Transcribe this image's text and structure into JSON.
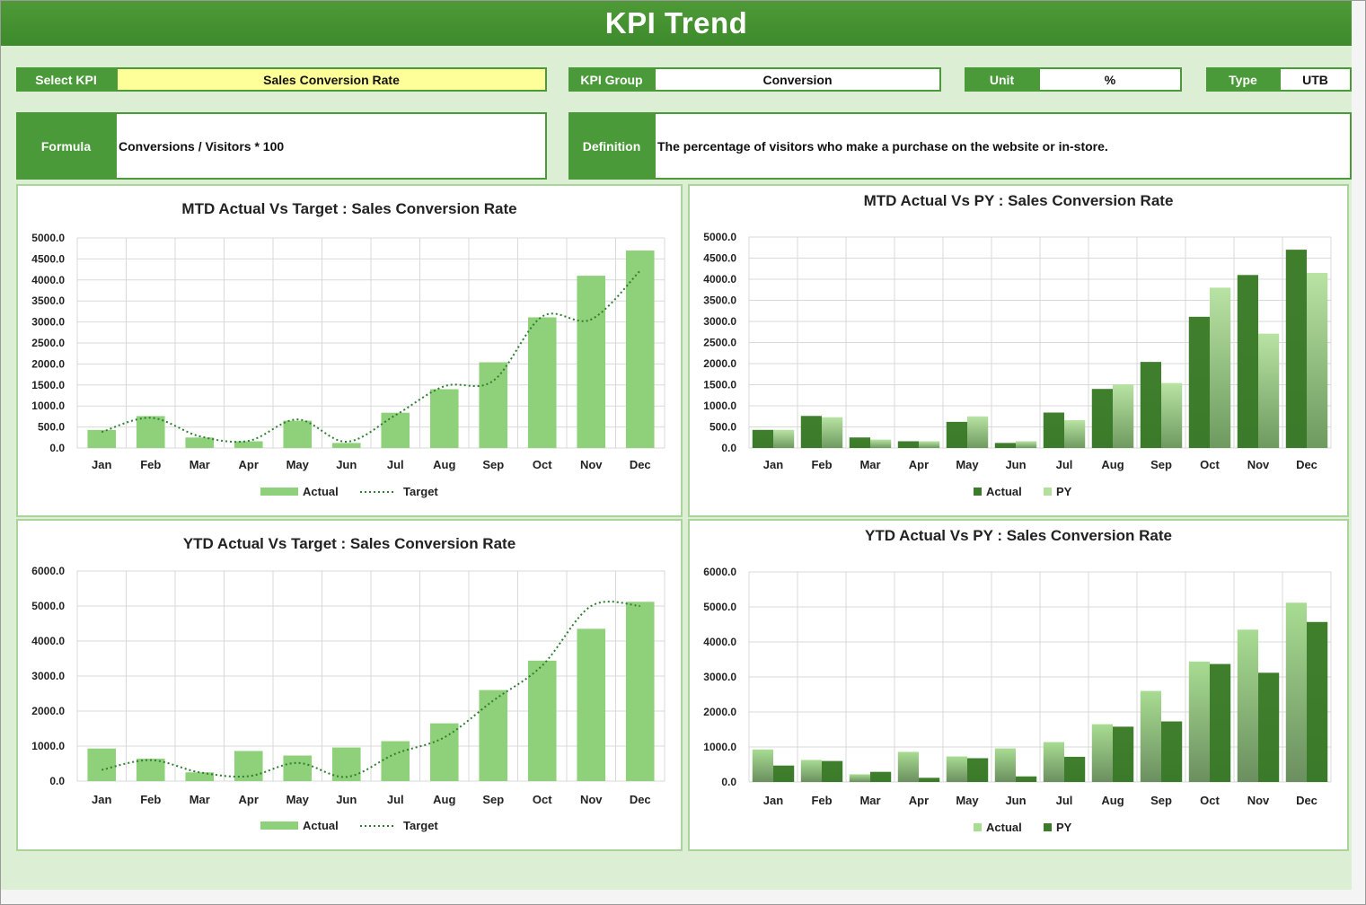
{
  "header": {
    "title": "KPI Trend"
  },
  "selectors": {
    "select_kpi_label": "Select KPI",
    "select_kpi_value": "Sales Conversion Rate",
    "kpi_group_label": "KPI Group",
    "kpi_group_value": "Conversion",
    "unit_label": "Unit",
    "unit_value": "%",
    "type_label": "Type",
    "type_value": "UTB"
  },
  "info": {
    "formula_label": "Formula",
    "formula_value": "Conversions / Visitors * 100",
    "definition_label": "Definition",
    "definition_value": "The percentage of visitors who make a purchase on the website or in-store."
  },
  "colors": {
    "header_green": "#3d8a2c",
    "label_green": "#4a9a3a",
    "background": "#dcefd4",
    "select_highlight": "#ffff99",
    "actual_light_green": "#8fd17a",
    "dark_green": "#3c7a2c",
    "py_light_green": "#b2e09c"
  },
  "chart_data": [
    {
      "id": "mtd_target",
      "type": "bar",
      "title": "MTD Actual Vs Target : Sales Conversion Rate",
      "categories": [
        "Jan",
        "Feb",
        "Mar",
        "Apr",
        "May",
        "Jun",
        "Jul",
        "Aug",
        "Sep",
        "Oct",
        "Nov",
        "Dec"
      ],
      "series": [
        {
          "name": "Actual",
          "kind": "bar",
          "values": [
            430,
            760,
            250,
            160,
            650,
            120,
            840,
            1400,
            2040,
            3110,
            4100,
            4700
          ]
        },
        {
          "name": "Target",
          "kind": "line-dotted",
          "values": [
            380,
            720,
            280,
            170,
            680,
            150,
            780,
            1470,
            1600,
            3130,
            3060,
            4220
          ]
        }
      ],
      "ylim": [
        0,
        5000
      ],
      "yticks": [
        "0.0",
        "500.0",
        "1000.0",
        "1500.0",
        "2000.0",
        "2500.0",
        "3000.0",
        "3500.0",
        "4000.0",
        "4500.0",
        "5000.0"
      ],
      "legend": "bottom"
    },
    {
      "id": "mtd_py",
      "type": "bar",
      "title": "MTD Actual Vs PY : Sales Conversion Rate",
      "categories": [
        "Jan",
        "Feb",
        "Mar",
        "Apr",
        "May",
        "Jun",
        "Jul",
        "Aug",
        "Sep",
        "Oct",
        "Nov",
        "Dec"
      ],
      "series": [
        {
          "name": "Actual",
          "kind": "bar",
          "values": [
            430,
            760,
            250,
            160,
            620,
            120,
            840,
            1400,
            2040,
            3110,
            4100,
            4700
          ]
        },
        {
          "name": "PY",
          "kind": "bar",
          "values": [
            430,
            730,
            200,
            160,
            750,
            160,
            660,
            1510,
            1540,
            3800,
            2710,
            4150
          ]
        }
      ],
      "ylim": [
        0,
        5000
      ],
      "yticks": [
        "0.0",
        "500.0",
        "1000.0",
        "1500.0",
        "2000.0",
        "2500.0",
        "3000.0",
        "3500.0",
        "4000.0",
        "4500.0",
        "5000.0"
      ],
      "legend": "bottom"
    },
    {
      "id": "ytd_target",
      "type": "bar",
      "title": "YTD Actual Vs Target : Sales Conversion Rate",
      "categories": [
        "Jan",
        "Feb",
        "Mar",
        "Apr",
        "May",
        "Jun",
        "Jul",
        "Aug",
        "Sep",
        "Oct",
        "Nov",
        "Dec"
      ],
      "series": [
        {
          "name": "Actual",
          "kind": "bar",
          "values": [
            930,
            640,
            250,
            860,
            730,
            960,
            1140,
            1650,
            2600,
            3440,
            4350,
            5120
          ]
        },
        {
          "name": "Target",
          "kind": "line-dotted",
          "values": [
            320,
            600,
            250,
            140,
            520,
            120,
            780,
            1250,
            2300,
            3300,
            5000,
            5000
          ]
        }
      ],
      "ylim": [
        0,
        6000
      ],
      "yticks": [
        "0.0",
        "1000.0",
        "2000.0",
        "3000.0",
        "4000.0",
        "5000.0",
        "6000.0"
      ],
      "legend": "bottom"
    },
    {
      "id": "ytd_py",
      "type": "bar",
      "title": "YTD Actual Vs PY : Sales Conversion Rate",
      "categories": [
        "Jan",
        "Feb",
        "Mar",
        "Apr",
        "May",
        "Jun",
        "Jul",
        "Aug",
        "Sep",
        "Oct",
        "Nov",
        "Dec"
      ],
      "series": [
        {
          "name": "Actual",
          "kind": "bar",
          "values": [
            930,
            630,
            220,
            860,
            730,
            960,
            1140,
            1650,
            2600,
            3440,
            4350,
            5120
          ]
        },
        {
          "name": "PY",
          "kind": "bar",
          "values": [
            470,
            600,
            290,
            120,
            680,
            160,
            720,
            1580,
            1730,
            3370,
            3120,
            4570
          ]
        }
      ],
      "ylim": [
        0,
        6000
      ],
      "yticks": [
        "0.0",
        "1000.0",
        "2000.0",
        "3000.0",
        "4000.0",
        "5000.0",
        "6000.0"
      ],
      "legend": "bottom"
    }
  ]
}
